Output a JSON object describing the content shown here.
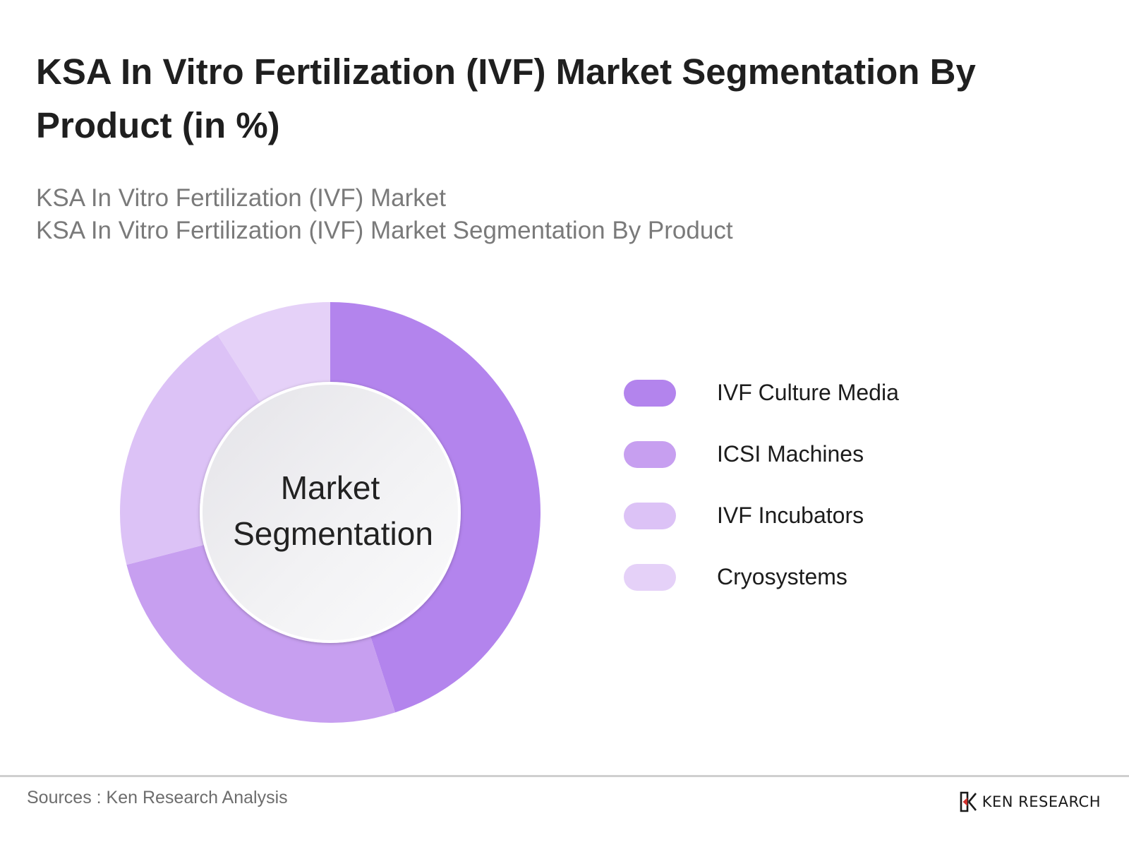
{
  "header": {
    "title": "KSA In Vitro Fertilization (IVF) Market Segmentation By Product (in %)",
    "subtitle_line1": "KSA In Vitro Fertilization (IVF) Market",
    "subtitle_line2": "KSA In Vitro Fertilization (IVF) Market Segmentation By Product"
  },
  "chart_data": {
    "type": "pie",
    "title": "KSA In Vitro Fertilization (IVF) Market Segmentation By Product (in %)",
    "center_label_line1": "Market",
    "center_label_line2": "Segmentation",
    "legend_position": "right",
    "categories": [
      "IVF Culture Media",
      "ICSI Machines",
      "IVF Incubators",
      "Cryosystems"
    ],
    "values": [
      45,
      26,
      20,
      9
    ],
    "colors": [
      "#b384ed",
      "#c79ff0",
      "#dcc2f6",
      "#e5d1f8"
    ]
  },
  "footer": {
    "source": "Sources : Ken Research Analysis",
    "brand": "KEN RESEARCH"
  }
}
